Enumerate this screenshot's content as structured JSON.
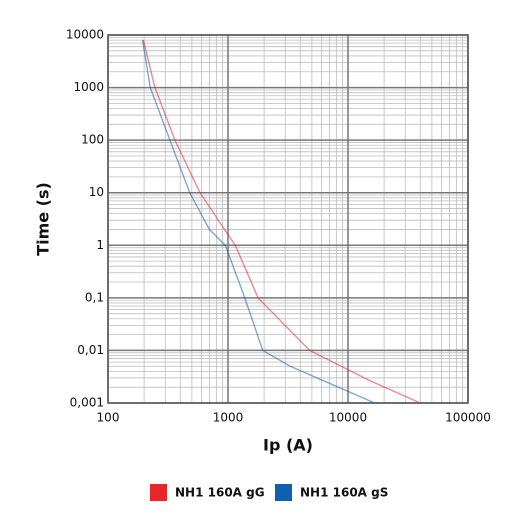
{
  "chart_data": {
    "type": "line",
    "x_label": "Ip (A)",
    "y_label": "Time (s)",
    "xlim": [
      100,
      100000
    ],
    "ylim": [
      0.001,
      10000
    ],
    "xticks": [
      100,
      1000,
      10000,
      100000
    ],
    "yticks": [
      10000,
      1000,
      100,
      10,
      1,
      {
        "value": 0.1,
        "label": "0,1"
      },
      {
        "value": 0.01,
        "label": "0,01"
      },
      {
        "value": 0.001,
        "label": "0,001"
      }
    ],
    "log_x": true,
    "log_y": true,
    "grid": true,
    "legend": "bottom",
    "series": [
      {
        "name": "NH1 160A gG",
        "color": "#e8262a",
        "x": [
          197,
          246,
          361,
          584,
          1000,
          1150,
          1780,
          4800,
          15000,
          40000
        ],
        "values": [
          8000,
          1000,
          100,
          10,
          1.6,
          1,
          0.1,
          0.01,
          0.0027,
          0.001
        ]
      },
      {
        "name": "NH1 160A gS",
        "color": "#1060b0",
        "x": [
          194,
          225,
          328,
          480,
          700,
          950,
          1380,
          1950,
          3300,
          16700
        ],
        "values": [
          8000,
          1000,
          100,
          10,
          2,
          1,
          0.1,
          0.01,
          0.005,
          0.001
        ]
      }
    ]
  }
}
